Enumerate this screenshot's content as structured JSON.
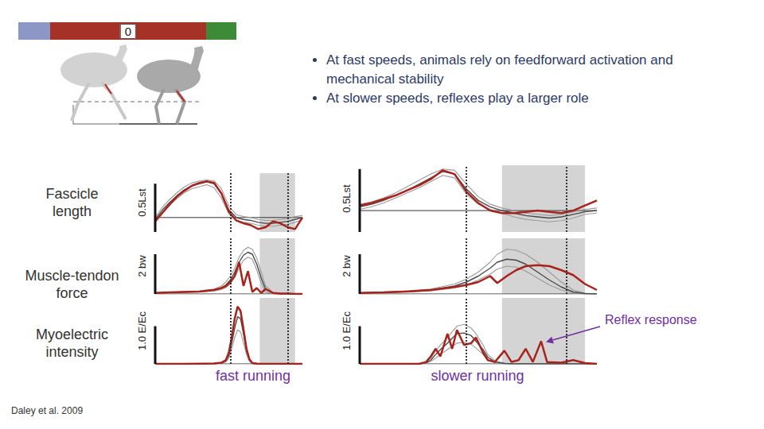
{
  "phase_bar": {
    "label": "0"
  },
  "bullets": [
    "At fast speeds, animals rely on feedforward activation and mechanical stability",
    "At slower speeds, reflexes play a larger role"
  ],
  "row_labels": [
    "Fascicle length",
    "Muscle-tendon force",
    "Myoelectric intensity"
  ],
  "column_titles": [
    "fast running",
    "slower running"
  ],
  "citation": "Daley et al. 2009",
  "chart_data": [
    {
      "type": "line",
      "xlim": [
        0,
        100
      ],
      "ylim": [
        -0.15,
        0.46
      ],
      "tick_labels": false,
      "baseline": 0,
      "shaded_x": [
        71,
        95
      ],
      "dotted_x": [
        51,
        90
      ],
      "scale_bar": {
        "value": 0.5,
        "label": "0.5Lst"
      },
      "x": [
        0,
        5,
        10,
        15,
        20,
        25,
        30,
        35,
        40,
        45,
        50,
        55,
        60,
        65,
        70,
        75,
        80,
        85,
        90,
        95,
        100
      ],
      "series": [
        {
          "color": "#a8231c",
          "line_style": "solid",
          "values": [
            -0.04,
            0.05,
            0.14,
            0.22,
            0.28,
            0.33,
            0.36,
            0.375,
            0.36,
            0.25,
            0.06,
            -0.03,
            -0.06,
            -0.08,
            -0.12,
            -0.1,
            -0.04,
            -0.06,
            -0.1,
            -0.12,
            0.0
          ]
        },
        {
          "color": "#9a9a9a",
          "line_style": "solid",
          "values": [
            0.0,
            0.11,
            0.19,
            0.26,
            0.32,
            0.36,
            0.38,
            0.39,
            0.38,
            0.3,
            0.12,
            0.03,
            0.01,
            0.0,
            -0.02,
            -0.03,
            -0.03,
            -0.02,
            -0.01,
            0.01,
            0.02
          ]
        },
        {
          "color": "#4a4a4a",
          "line_style": "solid",
          "values": [
            -0.02,
            0.08,
            0.16,
            0.23,
            0.29,
            0.33,
            0.35,
            0.37,
            0.35,
            0.25,
            0.08,
            0.0,
            -0.02,
            -0.03,
            -0.05,
            -0.06,
            -0.06,
            -0.05,
            -0.04,
            -0.02,
            0.0
          ]
        },
        {
          "color": "#9a9a9a",
          "line_style": "solid",
          "values": [
            -0.04,
            0.05,
            0.13,
            0.2,
            0.26,
            0.3,
            0.32,
            0.34,
            0.31,
            0.2,
            0.04,
            -0.03,
            -0.05,
            -0.06,
            -0.08,
            -0.09,
            -0.09,
            -0.08,
            -0.07,
            -0.05,
            -0.02
          ]
        }
      ]
    },
    {
      "type": "line",
      "xlim": [
        0,
        100
      ],
      "ylim": [
        -0.17,
        0.36
      ],
      "tick_labels": false,
      "baseline": 0,
      "shaded_x": [
        60,
        95
      ],
      "dotted_x": [
        45,
        87
      ],
      "scale_bar": {
        "value": 0.5,
        "label": "0.5Lst"
      },
      "x": [
        0,
        5,
        10,
        15,
        20,
        25,
        30,
        35,
        40,
        45,
        50,
        55,
        60,
        65,
        70,
        75,
        80,
        85,
        90,
        95,
        100
      ],
      "series": [
        {
          "color": "#a8231c",
          "line_style": "solid",
          "values": [
            0.04,
            0.06,
            0.09,
            0.12,
            0.16,
            0.2,
            0.25,
            0.32,
            0.29,
            0.15,
            0.06,
            0.0,
            -0.02,
            -0.02,
            -0.01,
            0.0,
            -0.01,
            -0.02,
            0.0,
            0.04,
            0.08
          ]
        },
        {
          "color": "#9a9a9a",
          "line_style": "solid",
          "values": [
            0.05,
            0.07,
            0.1,
            0.14,
            0.19,
            0.24,
            0.29,
            0.33,
            0.32,
            0.21,
            0.11,
            0.05,
            0.02,
            0.0,
            -0.02,
            -0.03,
            -0.04,
            -0.03,
            -0.01,
            0.01,
            0.02
          ]
        },
        {
          "color": "#4a4a4a",
          "line_style": "solid",
          "values": [
            0.03,
            0.05,
            0.08,
            0.12,
            0.16,
            0.21,
            0.26,
            0.31,
            0.29,
            0.17,
            0.08,
            0.03,
            0.0,
            -0.02,
            -0.04,
            -0.05,
            -0.06,
            -0.05,
            -0.03,
            -0.01,
            0.0
          ]
        },
        {
          "color": "#9a9a9a",
          "line_style": "solid",
          "values": [
            0.01,
            0.03,
            0.06,
            0.1,
            0.14,
            0.18,
            0.23,
            0.28,
            0.26,
            0.13,
            0.05,
            0.01,
            -0.02,
            -0.05,
            -0.07,
            -0.08,
            -0.09,
            -0.08,
            -0.06,
            -0.03,
            -0.02
          ]
        }
      ]
    },
    {
      "type": "line",
      "xlim": [
        0,
        100
      ],
      "ylim": [
        0,
        2.8
      ],
      "tick_labels": false,
      "baseline": 0,
      "shaded_x": [
        71,
        95
      ],
      "dotted_x": [
        51,
        90
      ],
      "scale_bar": {
        "value": 2,
        "label": "2 bw"
      },
      "x": [
        0,
        10,
        20,
        30,
        40,
        45,
        48,
        51,
        54,
        57,
        60,
        63,
        66,
        69,
        72,
        75,
        80,
        85,
        90,
        95,
        100
      ],
      "series": [
        {
          "color": "#a8231c",
          "line_style": "solid",
          "values": [
            0.05,
            0.08,
            0.1,
            0.12,
            0.2,
            0.3,
            0.4,
            0.6,
            0.9,
            1.6,
            0.4,
            1.15,
            0.1,
            0.3,
            0.05,
            0.25,
            0.05,
            0.02,
            0.02,
            0,
            0
          ]
        },
        {
          "color": "#9a9a9a",
          "line_style": "solid",
          "values": [
            0.06,
            0.09,
            0.12,
            0.15,
            0.25,
            0.4,
            0.6,
            0.9,
            1.3,
            1.85,
            2.2,
            2.35,
            2.25,
            1.8,
            1.1,
            0.4,
            0.08,
            0,
            0,
            0,
            0
          ]
        },
        {
          "color": "#4a4a4a",
          "line_style": "solid",
          "values": [
            0.05,
            0.08,
            0.1,
            0.12,
            0.2,
            0.3,
            0.45,
            0.7,
            1.1,
            1.6,
            1.95,
            2.1,
            2.0,
            1.5,
            0.8,
            0.25,
            0.05,
            0,
            0,
            0,
            0
          ]
        },
        {
          "color": "#9a9a9a",
          "line_style": "solid",
          "values": [
            0.04,
            0.06,
            0.08,
            0.1,
            0.15,
            0.22,
            0.32,
            0.5,
            0.85,
            1.3,
            1.7,
            1.85,
            1.75,
            1.2,
            0.55,
            0.1,
            0.02,
            0,
            0,
            0,
            0
          ]
        }
      ]
    },
    {
      "type": "line",
      "xlim": [
        0,
        100
      ],
      "ylim": [
        0,
        2.8
      ],
      "tick_labels": false,
      "baseline": 0,
      "shaded_x": [
        60,
        95
      ],
      "dotted_x": [
        45,
        87
      ],
      "scale_bar": {
        "value": 2,
        "label": "2 bw"
      },
      "x": [
        0,
        10,
        20,
        30,
        40,
        45,
        50,
        55,
        58,
        62,
        66,
        70,
        75,
        80,
        85,
        90,
        95,
        100
      ],
      "series": [
        {
          "color": "#a8231c",
          "line_style": "solid",
          "values": [
            0.05,
            0.08,
            0.12,
            0.2,
            0.35,
            0.45,
            0.6,
            0.9,
            0.55,
            0.9,
            1.2,
            1.4,
            1.45,
            1.4,
            1.2,
            0.95,
            0.5,
            0.2
          ]
        },
        {
          "color": "#9a9a9a",
          "line_style": "solid",
          "values": [
            0.06,
            0.1,
            0.15,
            0.25,
            0.5,
            0.75,
            1.1,
            1.6,
            2.0,
            2.25,
            2.2,
            2.0,
            1.6,
            1.1,
            0.6,
            0.2,
            0.04,
            0
          ]
        },
        {
          "color": "#4a4a4a",
          "line_style": "solid",
          "values": [
            0.05,
            0.08,
            0.12,
            0.2,
            0.4,
            0.6,
            0.9,
            1.3,
            1.6,
            1.75,
            1.7,
            1.5,
            1.1,
            0.7,
            0.35,
            0.1,
            0.02,
            0
          ]
        },
        {
          "color": "#9a9a9a",
          "line_style": "solid",
          "values": [
            0.04,
            0.06,
            0.1,
            0.15,
            0.3,
            0.45,
            0.7,
            1.0,
            1.25,
            1.4,
            1.35,
            1.15,
            0.8,
            0.45,
            0.2,
            0.05,
            0,
            0
          ]
        }
      ]
    },
    {
      "type": "line",
      "xlim": [
        0,
        100
      ],
      "ylim": [
        0,
        1.75
      ],
      "tick_labels": false,
      "baseline": 0,
      "shaded_x": [
        71,
        95
      ],
      "dotted_x": [
        51,
        90
      ],
      "scale_bar": {
        "value": 1.0,
        "label": "1.0 E/Ec"
      },
      "x": [
        0,
        20,
        40,
        45,
        48,
        50,
        52,
        54,
        56,
        58,
        60,
        62,
        64,
        66,
        70,
        80,
        100
      ],
      "series": [
        {
          "color": "#a8231c",
          "line_style": "solid",
          "values": [
            0,
            0,
            0.01,
            0.03,
            0.1,
            0.3,
            0.7,
            1.2,
            1.52,
            1.4,
            0.9,
            0.4,
            0.12,
            0.02,
            0,
            0,
            0
          ]
        },
        {
          "color": "#9a9a9a",
          "line_style": "solid",
          "values": [
            0,
            0,
            0.01,
            0.03,
            0.1,
            0.3,
            0.7,
            1.15,
            1.5,
            1.45,
            1.0,
            0.45,
            0.15,
            0.03,
            0,
            0,
            0
          ]
        },
        {
          "color": "#4a4a4a",
          "line_style": "solid",
          "values": [
            0,
            0,
            0.01,
            0.02,
            0.08,
            0.22,
            0.55,
            0.95,
            1.25,
            1.2,
            0.8,
            0.35,
            0.1,
            0.02,
            0,
            0,
            0
          ]
        },
        {
          "color": "#9a9a9a",
          "line_style": "solid",
          "values": [
            0,
            0,
            0,
            0.02,
            0.05,
            0.15,
            0.4,
            0.7,
            0.9,
            0.85,
            0.55,
            0.25,
            0.07,
            0.01,
            0,
            0,
            0
          ]
        }
      ]
    },
    {
      "type": "line",
      "xlim": [
        0,
        100
      ],
      "ylim": [
        0,
        1.75
      ],
      "tick_labels": false,
      "baseline": 0,
      "shaded_x": [
        60,
        95
      ],
      "dotted_x": [
        45,
        87
      ],
      "scale_bar": {
        "value": 1.0,
        "label": "1.0 E/Ec"
      },
      "annotation": {
        "text": "Reflex response",
        "x": 76.5,
        "y": 0.6
      },
      "x": [
        0,
        25,
        28,
        30,
        32,
        34,
        37,
        39,
        41,
        44,
        47,
        49,
        52,
        54,
        57,
        61,
        64,
        67,
        70,
        73,
        76.5,
        79,
        85,
        90,
        95,
        100
      ],
      "series": [
        {
          "color": "#a8231c",
          "line_style": "solid",
          "values": [
            0,
            0,
            0.05,
            0.2,
            0.4,
            0.2,
            0.8,
            0.4,
            0.9,
            0.5,
            0.55,
            0.7,
            0.3,
            0.1,
            0.05,
            0.35,
            0.05,
            0.1,
            0.4,
            0.05,
            0.6,
            0.05,
            0.03,
            0.1,
            0.02,
            0
          ]
        },
        {
          "color": "#9a9a9a",
          "line_style": "solid",
          "values": [
            0,
            0,
            0.05,
            0.15,
            0.35,
            0.5,
            0.7,
            0.85,
            1.0,
            1.05,
            0.95,
            0.8,
            0.5,
            0.25,
            0.08,
            0.02,
            0,
            0,
            0,
            0,
            0,
            0,
            0,
            0,
            0,
            0
          ]
        },
        {
          "color": "#4a4a4a",
          "line_style": "solid",
          "values": [
            0,
            0,
            0.03,
            0.1,
            0.25,
            0.38,
            0.55,
            0.68,
            0.8,
            0.82,
            0.75,
            0.6,
            0.38,
            0.18,
            0.05,
            0.01,
            0,
            0,
            0,
            0,
            0,
            0,
            0,
            0,
            0,
            0
          ]
        },
        {
          "color": "#9a9a9a",
          "line_style": "solid",
          "values": [
            0,
            0,
            0.02,
            0.07,
            0.15,
            0.25,
            0.38,
            0.47,
            0.55,
            0.57,
            0.52,
            0.42,
            0.25,
            0.1,
            0.03,
            0,
            0,
            0,
            0,
            0,
            0,
            0,
            0,
            0,
            0,
            0
          ]
        }
      ]
    }
  ]
}
